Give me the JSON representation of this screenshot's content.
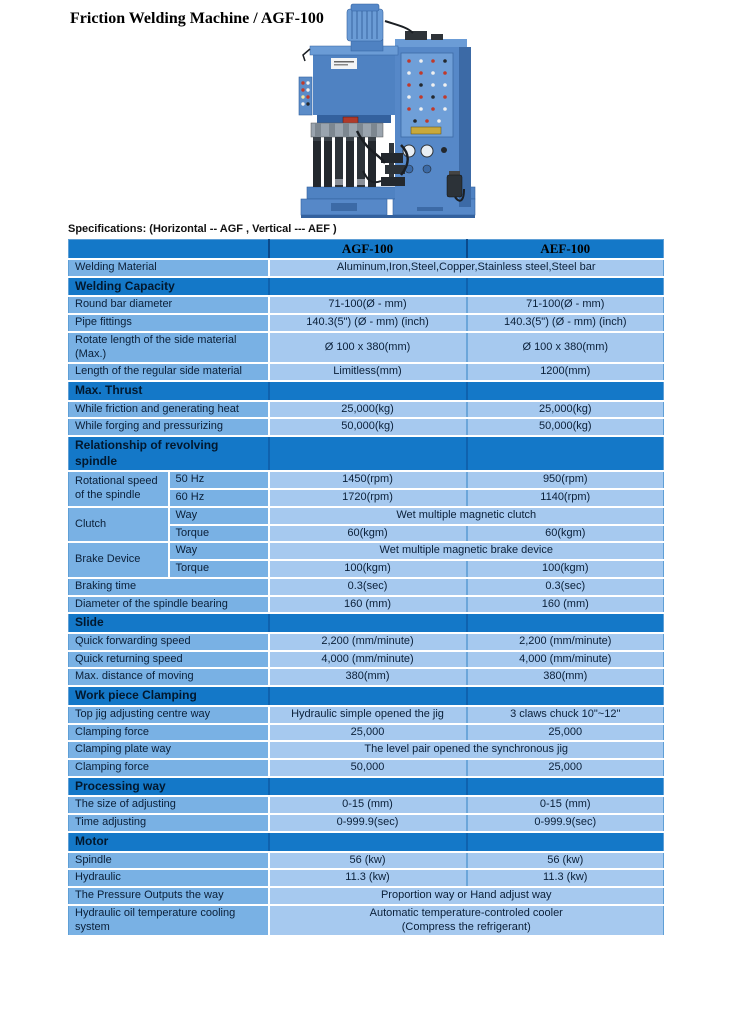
{
  "page": {
    "title": "Friction Welding Machine / AGF-100",
    "spec_caption": "Specifications: (Horizontal -- AGF , Vertical --- AEF )"
  },
  "colors": {
    "table_header_bg": "#1478c8",
    "section_bg": "#1478c8",
    "label_cell_bg": "#79b1e4",
    "value_cell_bg": "#a6c9ef",
    "machine_blue": "#5688c8"
  },
  "machine_illustration": "blue friction welding machine with finned motor, spindle head, hydraulic cylinders and control cabinet",
  "table": {
    "columns": [
      "AGF-100",
      "AEF-100"
    ],
    "rows": [
      {
        "kind": "row",
        "label": "Welding Material",
        "span": "Aluminum,Iron,Steel,Copper,Stainless steel,Steel bar"
      },
      {
        "kind": "section",
        "label": "Welding Capacity"
      },
      {
        "kind": "row",
        "label": "Round bar diameter",
        "values": [
          "71-100(Ø - mm)",
          "71-100(Ø - mm)"
        ]
      },
      {
        "kind": "row",
        "label": "Pipe fittings",
        "values": [
          "140.3(5\") (Ø - mm) (inch)",
          "140.3(5\") (Ø - mm) (inch)"
        ]
      },
      {
        "kind": "row",
        "label": "Rotate length of the side material (Max.)",
        "values": [
          "Ø 100 x 380(mm)",
          "Ø 100 x 380(mm)"
        ]
      },
      {
        "kind": "row",
        "label": "Length of the regular side material",
        "values": [
          "Limitless(mm)",
          "1200(mm)"
        ]
      },
      {
        "kind": "section",
        "label": "Max. Thrust"
      },
      {
        "kind": "row",
        "label": "While friction and generating heat",
        "values": [
          "25,000(kg)",
          "25,000(kg)"
        ]
      },
      {
        "kind": "row",
        "label": "While forging and pressurizing",
        "values": [
          "50,000(kg)",
          "50,000(kg)"
        ]
      },
      {
        "kind": "section",
        "label": "Relationship of revolving spindle"
      },
      {
        "kind": "group",
        "label": "Rotational speed of the spindle",
        "subs": [
          {
            "label": "50 Hz",
            "values": [
              "1450(rpm)",
              "950(rpm)"
            ]
          },
          {
            "label": "60 Hz",
            "values": [
              "1720(rpm)",
              "1140(rpm)"
            ]
          }
        ]
      },
      {
        "kind": "group",
        "label": "Clutch",
        "subs": [
          {
            "label": "Way",
            "span": "Wet multiple magnetic clutch"
          },
          {
            "label": "Torque",
            "values": [
              "60(kgm)",
              "60(kgm)"
            ]
          }
        ]
      },
      {
        "kind": "group",
        "label": "Brake Device",
        "subs": [
          {
            "label": "Way",
            "span": "Wet multiple magnetic brake device"
          },
          {
            "label": "Torque",
            "values": [
              "100(kgm)",
              "100(kgm)"
            ]
          }
        ]
      },
      {
        "kind": "row",
        "label": "Braking time",
        "values": [
          "0.3(sec)",
          "0.3(sec)"
        ]
      },
      {
        "kind": "row",
        "label": "Diameter of the spindle bearing",
        "values": [
          "160 (mm)",
          "160 (mm)"
        ]
      },
      {
        "kind": "section",
        "label": "Slide"
      },
      {
        "kind": "row",
        "label": "Quick forwarding speed",
        "values": [
          "2,200 (mm/minute)",
          "2,200 (mm/minute)"
        ]
      },
      {
        "kind": "row",
        "label": "Quick returning speed",
        "values": [
          "4,000 (mm/minute)",
          "4,000 (mm/minute)"
        ]
      },
      {
        "kind": "row",
        "label": "Max. distance of moving",
        "values": [
          "380(mm)",
          "380(mm)"
        ]
      },
      {
        "kind": "section",
        "label": "Work piece Clamping"
      },
      {
        "kind": "row",
        "label": "Top jig adjusting centre way",
        "values": [
          "Hydraulic simple opened the jig",
          "3 claws chuck 10\"~12\""
        ]
      },
      {
        "kind": "row",
        "label": "Clamping force",
        "values": [
          "25,000",
          "25,000"
        ]
      },
      {
        "kind": "row",
        "label": "Clamping plate way",
        "span": "The level pair opened the synchronous jig"
      },
      {
        "kind": "row",
        "label": "Clamping force",
        "values": [
          "50,000",
          "25,000"
        ]
      },
      {
        "kind": "section",
        "label": "Processing way"
      },
      {
        "kind": "row",
        "label": "The size of adjusting",
        "values": [
          "0-15 (mm)",
          "0-15 (mm)"
        ]
      },
      {
        "kind": "row",
        "label": "Time adjusting",
        "values": [
          "0-999.9(sec)",
          "0-999.9(sec)"
        ]
      },
      {
        "kind": "section",
        "label": "Motor"
      },
      {
        "kind": "row",
        "label": "Spindle",
        "values": [
          "56 (kw)",
          "56 (kw)"
        ]
      },
      {
        "kind": "row",
        "label": "Hydraulic",
        "values": [
          "11.3 (kw)",
          "11.3 (kw)"
        ]
      },
      {
        "kind": "row",
        "label": "The Pressure Outputs the way",
        "span": "Proportion way or Hand adjust way"
      },
      {
        "kind": "row",
        "label": "Hydraulic oil temperature cooling system",
        "span": "Automatic temperature-controled cooler\n(Compress the refrigerant)"
      }
    ]
  }
}
